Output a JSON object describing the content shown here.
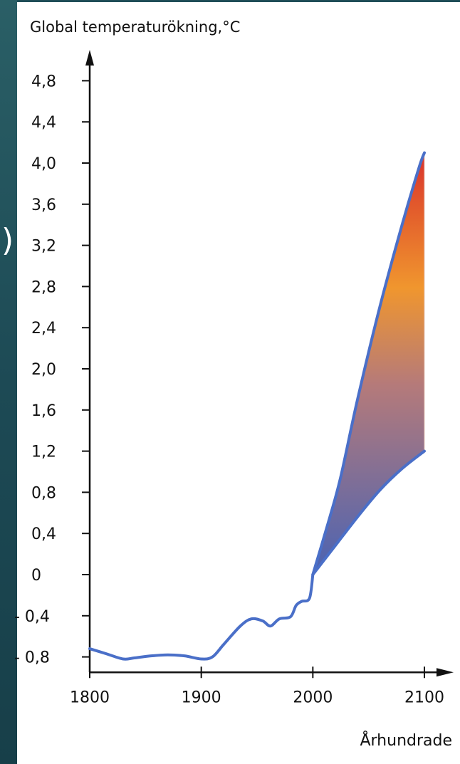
{
  "chart_data": {
    "type": "area",
    "title": "Global temperaturökning,°C",
    "xlabel": "Århundrade",
    "ylabel": "",
    "xlim": [
      1800,
      2105
    ],
    "ylim": [
      -0.95,
      5.0
    ],
    "x_ticks": [
      {
        "value": 1800,
        "label": "1800"
      },
      {
        "value": 1900,
        "label": "1900"
      },
      {
        "value": 2000,
        "label": "2000"
      },
      {
        "value": 2100,
        "label": "2100"
      }
    ],
    "y_ticks": [
      {
        "value": 4.8,
        "label": "4,8"
      },
      {
        "value": 4.4,
        "label": "4,4"
      },
      {
        "value": 4.0,
        "label": "4,0"
      },
      {
        "value": 3.6,
        "label": "3,6"
      },
      {
        "value": 3.2,
        "label": "3,2"
      },
      {
        "value": 2.8,
        "label": "2,8"
      },
      {
        "value": 2.4,
        "label": "2,4"
      },
      {
        "value": 2.0,
        "label": "2,0"
      },
      {
        "value": 1.6,
        "label": "1,6"
      },
      {
        "value": 1.2,
        "label": "1,2"
      },
      {
        "value": 0.8,
        "label": "0,8"
      },
      {
        "value": 0.4,
        "label": "0,4"
      },
      {
        "value": 0,
        "label": "0"
      },
      {
        "value": -0.4,
        "label": "- 0,4"
      },
      {
        "value": -0.8,
        "label": "- 0,8"
      }
    ],
    "series": [
      {
        "values": [
          [
            1800,
            -0.72
          ],
          [
            1815,
            -0.77
          ],
          [
            1830,
            -0.82
          ],
          [
            1840,
            -0.81
          ],
          [
            1855,
            -0.79
          ],
          [
            1870,
            -0.78
          ],
          [
            1885,
            -0.79
          ],
          [
            1900,
            -0.82
          ],
          [
            1910,
            -0.8
          ],
          [
            1920,
            -0.68
          ],
          [
            1935,
            -0.5
          ],
          [
            1945,
            -0.43
          ],
          [
            1955,
            -0.45
          ],
          [
            1962,
            -0.5
          ],
          [
            1970,
            -0.43
          ],
          [
            1980,
            -0.41
          ],
          [
            1985,
            -0.3
          ],
          [
            1990,
            -0.26
          ],
          [
            1997,
            -0.23
          ],
          [
            2000,
            0.0
          ]
        ]
      },
      {
        "values": [
          [
            2000,
            0.0
          ],
          [
            2015,
            0.55
          ],
          [
            2025,
            0.95
          ],
          [
            2040,
            1.7
          ],
          [
            2060,
            2.6
          ],
          [
            2080,
            3.4
          ],
          [
            2095,
            3.95
          ],
          [
            2100,
            4.1
          ]
        ]
      },
      {
        "values": [
          [
            2000,
            0.0
          ],
          [
            2020,
            0.28
          ],
          [
            2040,
            0.56
          ],
          [
            2060,
            0.82
          ],
          [
            2080,
            1.03
          ],
          [
            2100,
            1.2
          ]
        ]
      }
    ],
    "band_gradient": [
      "#4a63b3",
      "#f0962e",
      "#d9322b"
    ],
    "line_color": "#4a6fc8",
    "grid": false
  }
}
